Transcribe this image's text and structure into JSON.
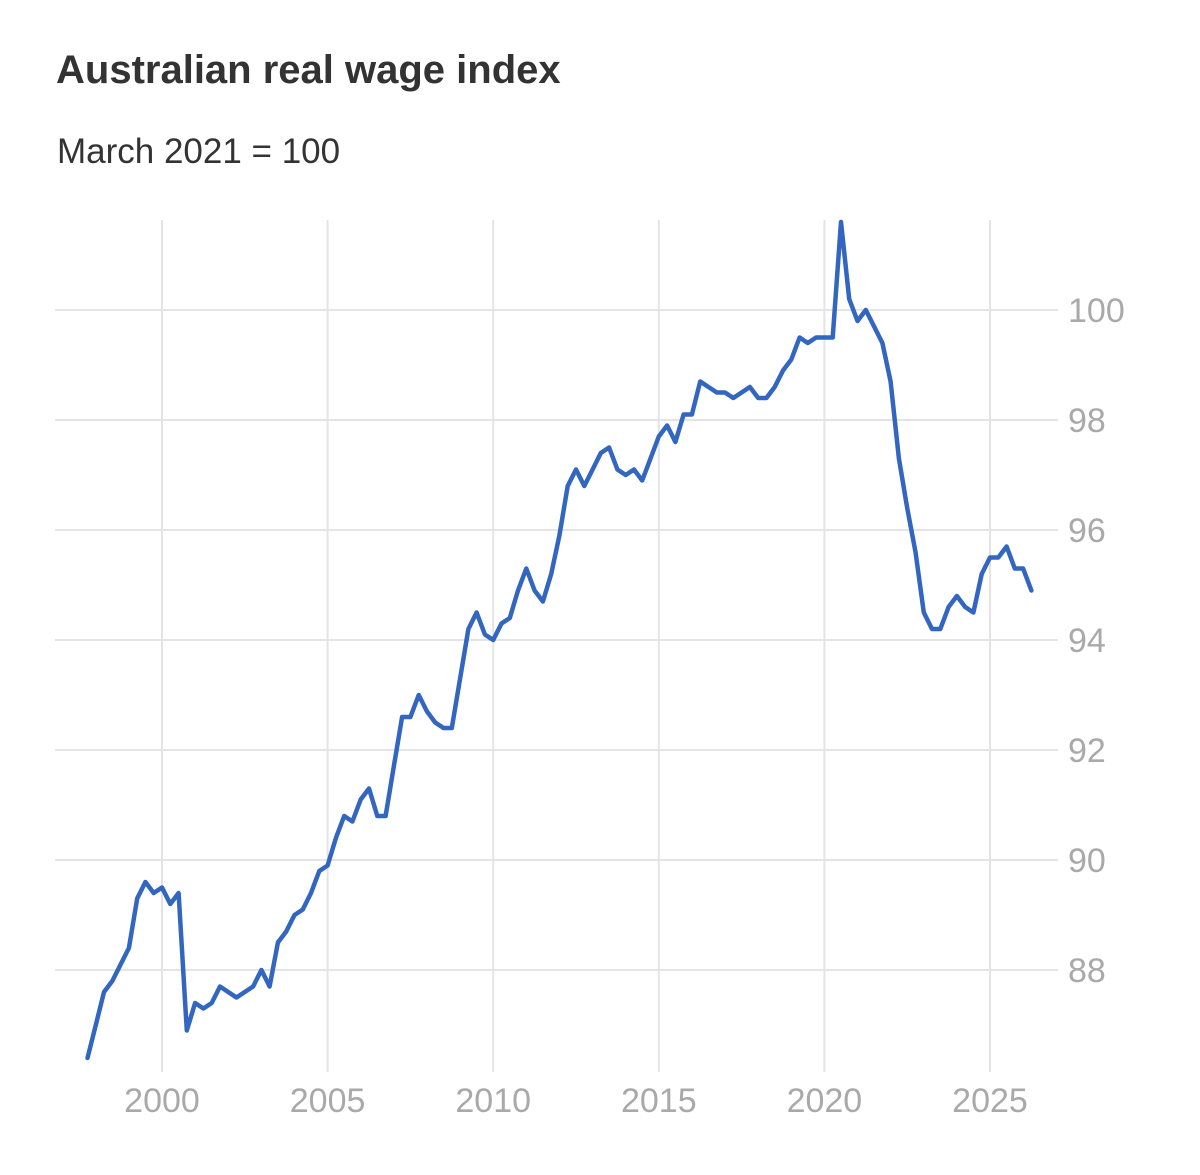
{
  "chart_data": {
    "type": "line",
    "title": "Australian real wage index",
    "subtitle": "March 2021 = 100",
    "xlabel": "",
    "ylabel": "",
    "xlim": [
      1997.5,
      2027
    ],
    "ylim": [
      86.3,
      102.2
    ],
    "x_ticks": [
      2000,
      2005,
      2010,
      2015,
      2020,
      2025
    ],
    "x_tick_labels": [
      "2000",
      "2005",
      "2010",
      "2015",
      "2020",
      "2025"
    ],
    "y_ticks": [
      88,
      90,
      92,
      94,
      96,
      98,
      100
    ],
    "y_tick_labels": [
      "88",
      "90",
      "92",
      "94",
      "96",
      "98",
      "100"
    ],
    "grid": true,
    "legend": "none",
    "series": [
      {
        "color": "#3266c0",
        "x": [
          1997.75,
          1998.0,
          1998.25,
          1998.5,
          1998.75,
          1999.0,
          1999.25,
          1999.5,
          1999.75,
          2000.0,
          2000.25,
          2000.5,
          2000.75,
          2001.0,
          2001.25,
          2001.5,
          2001.75,
          2002.0,
          2002.25,
          2002.5,
          2002.75,
          2003.0,
          2003.25,
          2003.5,
          2003.75,
          2004.0,
          2004.25,
          2004.5,
          2004.75,
          2005.0,
          2005.25,
          2005.5,
          2005.75,
          2006.0,
          2006.25,
          2006.5,
          2006.75,
          2007.0,
          2007.25,
          2007.5,
          2007.75,
          2008.0,
          2008.25,
          2008.5,
          2008.75,
          2009.0,
          2009.25,
          2009.5,
          2009.75,
          2010.0,
          2010.25,
          2010.5,
          2010.75,
          2011.0,
          2011.25,
          2011.5,
          2011.75,
          2012.0,
          2012.25,
          2012.5,
          2012.75,
          2013.0,
          2013.25,
          2013.5,
          2013.75,
          2014.0,
          2014.25,
          2014.5,
          2014.75,
          2015.0,
          2015.25,
          2015.5,
          2015.75,
          2016.0,
          2016.25,
          2016.5,
          2016.75,
          2017.0,
          2017.25,
          2017.5,
          2017.75,
          2018.0,
          2018.25,
          2018.5,
          2018.75,
          2019.0,
          2019.25,
          2019.5,
          2019.75,
          2020.0,
          2020.25,
          2020.5,
          2020.75,
          2021.0,
          2021.25,
          2021.5,
          2021.75,
          2022.0,
          2022.25,
          2022.5,
          2022.75,
          2023.0,
          2023.25,
          2023.5,
          2023.75,
          2024.0,
          2024.25,
          2024.5,
          2024.75,
          2025.0,
          2025.25,
          2025.5,
          2025.75,
          2026.0,
          2026.25
        ],
        "y": [
          86.4,
          87.0,
          87.6,
          87.8,
          88.1,
          88.4,
          89.3,
          89.6,
          89.4,
          89.5,
          89.2,
          89.4,
          86.9,
          87.4,
          87.3,
          87.4,
          87.7,
          87.6,
          87.5,
          87.6,
          87.7,
          88.0,
          87.7,
          88.5,
          88.7,
          89.0,
          89.1,
          89.4,
          89.8,
          89.9,
          90.4,
          90.8,
          90.7,
          91.1,
          91.3,
          90.8,
          90.8,
          91.7,
          92.6,
          92.6,
          93.0,
          92.7,
          92.5,
          92.4,
          92.4,
          93.3,
          94.2,
          94.5,
          94.1,
          94.0,
          94.3,
          94.4,
          94.9,
          95.3,
          94.9,
          94.7,
          95.2,
          95.9,
          96.8,
          97.1,
          96.8,
          97.1,
          97.4,
          97.5,
          97.1,
          97.0,
          97.1,
          96.9,
          97.3,
          97.7,
          97.9,
          97.6,
          98.1,
          98.1,
          98.7,
          98.6,
          98.5,
          98.5,
          98.4,
          98.5,
          98.6,
          98.4,
          98.4,
          98.6,
          98.9,
          99.1,
          99.5,
          99.4,
          99.5,
          99.5,
          99.5,
          101.6,
          100.2,
          99.8,
          100.0,
          99.7,
          99.4,
          98.7,
          97.3,
          96.4,
          95.6,
          94.5,
          94.2,
          94.2,
          94.6,
          94.8,
          94.6,
          94.5,
          95.2,
          95.5,
          95.5,
          95.7,
          95.3,
          95.3,
          94.9
        ]
      }
    ]
  }
}
